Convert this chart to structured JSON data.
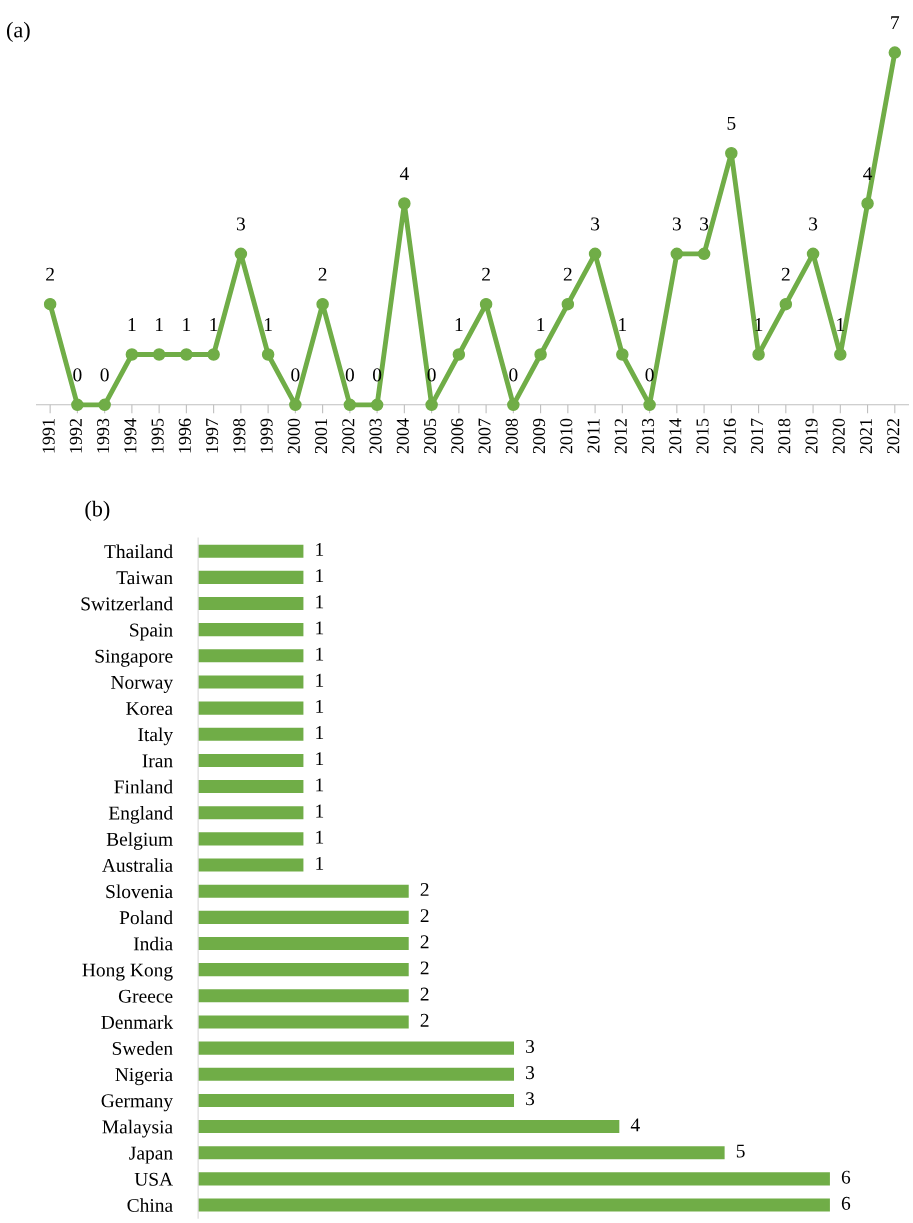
{
  "chart_data": [
    {
      "type": "line",
      "title": "(a)",
      "categories": [
        "1991",
        "1992",
        "1993",
        "1994",
        "1995",
        "1996",
        "1997",
        "1998",
        "1999",
        "2000",
        "2001",
        "2002",
        "2003",
        "2004",
        "2005",
        "2006",
        "2007",
        "2008",
        "2009",
        "2010",
        "2011",
        "2012",
        "2013",
        "2014",
        "2015",
        "2016",
        "2017",
        "2018",
        "2019",
        "2020",
        "2021",
        "2022"
      ],
      "series": [
        {
          "color": "#70ad47",
          "values": [
            2,
            0,
            0,
            1,
            1,
            1,
            1,
            3,
            1,
            0,
            2,
            0,
            0,
            4,
            0,
            1,
            2,
            0,
            1,
            2,
            3,
            1,
            0,
            3,
            3,
            5,
            1,
            2,
            3,
            1,
            4,
            7
          ]
        }
      ],
      "marker": "circle",
      "line_style": "solid",
      "data_labels": true,
      "grid": false,
      "tick_labels": "x"
    },
    {
      "type": "bar",
      "orientation": "horizontal",
      "title": "(b)",
      "categories": [
        "Thailand",
        "Taiwan",
        "Switzerland",
        "Spain",
        "Singapore",
        "Norway",
        "Korea",
        "Italy",
        "Iran",
        "Finland",
        "England",
        "Belgium",
        "Australia",
        "Slovenia",
        "Poland",
        "India",
        "Hong Kong",
        "Greece",
        "Denmark",
        "Sweden",
        "Nigeria",
        "Germany",
        "Malaysia",
        "Japan",
        "USA",
        "China"
      ],
      "series": [
        {
          "color": "#70ad47",
          "values": [
            1,
            1,
            1,
            1,
            1,
            1,
            1,
            1,
            1,
            1,
            1,
            1,
            1,
            2,
            2,
            2,
            2,
            2,
            2,
            3,
            3,
            3,
            4,
            5,
            6,
            6
          ]
        }
      ],
      "data_labels": true,
      "grid": false,
      "tick_labels": "y"
    }
  ]
}
